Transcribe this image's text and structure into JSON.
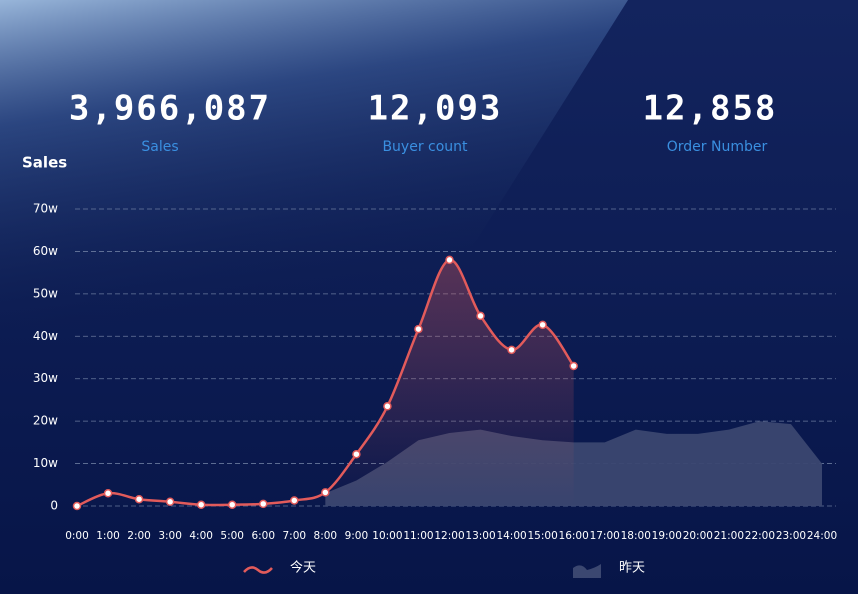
{
  "stats": [
    {
      "value": "3,966,087",
      "label": "Sales"
    },
    {
      "value": "12,093",
      "label": "Buyer count"
    },
    {
      "value": "12,858",
      "label": "Order Number"
    }
  ],
  "chart_data": {
    "type": "line",
    "y_label": "Sales",
    "categories": [
      "0:00",
      "1:00",
      "2:00",
      "3:00",
      "4:00",
      "5:00",
      "6:00",
      "7:00",
      "8:00",
      "9:00",
      "10:00",
      "11:00",
      "12:00",
      "13:00",
      "14:00",
      "15:00",
      "16:00",
      "17:00",
      "18:00",
      "19:00",
      "20:00",
      "21:00",
      "22:00",
      "23:00",
      "24:00"
    ],
    "series": [
      {
        "name": "今天",
        "color": "#e25b5b",
        "kind": "line",
        "values": [
          0,
          3,
          1.6,
          1,
          0.3,
          0.3,
          0.5,
          1.3,
          3.2,
          12.2,
          23.5,
          41.7,
          58,
          44.8,
          36.8,
          42.7,
          33,
          null,
          null,
          null,
          null,
          null,
          null,
          null,
          null
        ]
      },
      {
        "name": "昨天",
        "color": "#3b4770",
        "kind": "area",
        "values": [
          null,
          null,
          null,
          null,
          null,
          null,
          null,
          null,
          3,
          6,
          10.4,
          15.5,
          17.2,
          18,
          16.5,
          15.5,
          15,
          15,
          18,
          17,
          17,
          18,
          20,
          19.3,
          10
        ]
      }
    ],
    "ylim": [
      0,
      70
    ],
    "yticks": [
      0,
      {
        "value": 10,
        "label": "10w"
      },
      {
        "value": 20,
        "label": "20w"
      },
      {
        "value": 30,
        "label": "30w"
      },
      {
        "value": 40,
        "label": "40w"
      },
      {
        "value": 50,
        "label": "50w"
      },
      {
        "value": 60,
        "label": "60w"
      },
      {
        "value": 70,
        "label": "70w"
      }
    ],
    "grid": true
  }
}
